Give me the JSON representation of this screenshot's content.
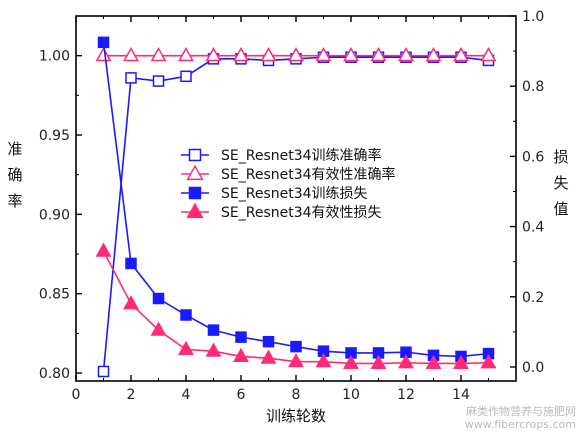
{
  "chart_data": {
    "type": "line",
    "title": "",
    "xlabel": "训练轮数",
    "ylabel_left": "准确率",
    "ylabel_right": "损失值",
    "x": [
      1,
      2,
      3,
      4,
      5,
      6,
      7,
      8,
      9,
      10,
      11,
      12,
      13,
      14,
      15
    ],
    "xlim": [
      0,
      16
    ],
    "ylim_left": [
      0.795,
      1.025
    ],
    "ylim_right": [
      -0.04,
      1.0
    ],
    "x_ticks": [
      "0",
      "2",
      "4",
      "6",
      "8",
      "10",
      "12",
      "14"
    ],
    "y_left_ticks": [
      "0.80",
      "0.85",
      "0.90",
      "0.95",
      "1.00"
    ],
    "y_right_ticks": [
      "0.0",
      "0.2",
      "0.4",
      "0.6",
      "0.8",
      "1.0"
    ],
    "legend_position": "center",
    "series": [
      {
        "name": "SE_Resnet34训练准确率",
        "axis": "left",
        "color": "#1a1aff",
        "marker": "square-open",
        "values": [
          0.801,
          0.986,
          0.984,
          0.987,
          0.998,
          0.998,
          0.997,
          0.998,
          0.999,
          0.999,
          0.999,
          0.999,
          0.999,
          0.999,
          0.997
        ]
      },
      {
        "name": "SE_Resnet34有效性准确率",
        "axis": "left",
        "color": "#ff2a7a",
        "marker": "triangle-open",
        "values": [
          1.0,
          1.0,
          1.0,
          1.0,
          1.0,
          1.0,
          1.0,
          1.0,
          1.0,
          1.0,
          1.0,
          1.0,
          1.0,
          1.0,
          1.0
        ]
      },
      {
        "name": "SE_Resnet34训练损失",
        "axis": "right",
        "color": "#1a1aff",
        "marker": "square-filled",
        "values": [
          0.925,
          0.295,
          0.195,
          0.148,
          0.105,
          0.085,
          0.072,
          0.058,
          0.045,
          0.04,
          0.04,
          0.042,
          0.033,
          0.03,
          0.038
        ]
      },
      {
        "name": "SE_Resnet34有效性损失",
        "axis": "right",
        "color": "#ff2a7a",
        "marker": "triangle-filled",
        "values": [
          0.33,
          0.18,
          0.105,
          0.05,
          0.045,
          0.03,
          0.025,
          0.015,
          0.015,
          0.01,
          0.01,
          0.012,
          0.01,
          0.01,
          0.012
        ]
      }
    ]
  },
  "watermark": {
    "line1": "麻类作物营养与施肥网",
    "line2": "www.fibercrops.com"
  }
}
